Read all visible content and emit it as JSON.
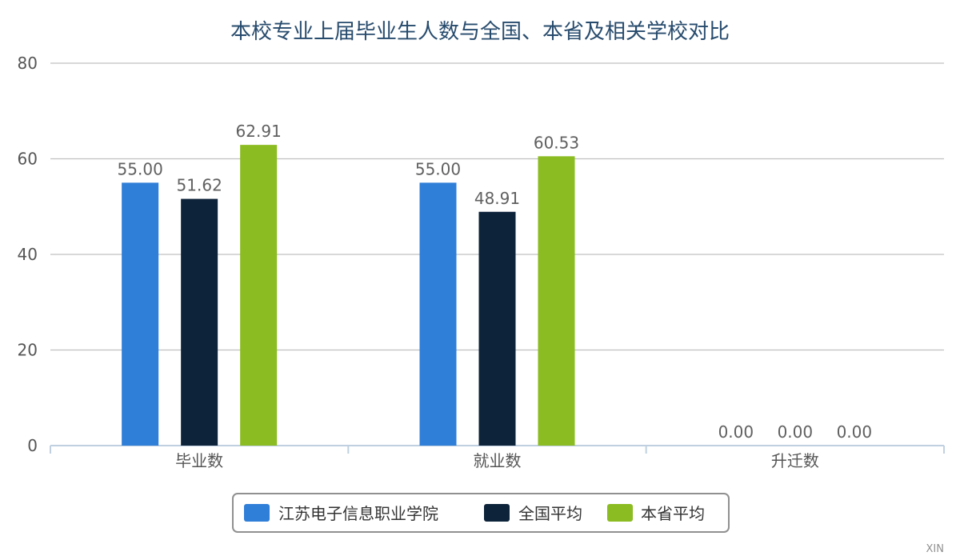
{
  "credit": "XIN",
  "chart_data": {
    "type": "bar",
    "title": "本校专业上届毕业生人数与全国、本省及相关学校对比",
    "categories": [
      "毕业数",
      "就业数",
      "升迁数"
    ],
    "series": [
      {
        "name": "江苏电子信息职业学院",
        "values": [
          55.0,
          55.0,
          0.0
        ],
        "labels": [
          "55.00",
          "55.00",
          "0.00"
        ],
        "color": "#2f7ed8"
      },
      {
        "name": "全国平均",
        "values": [
          51.62,
          48.91,
          0.0
        ],
        "labels": [
          "51.62",
          "48.91",
          "0.00"
        ],
        "color": "#0d233a"
      },
      {
        "name": "本省平均",
        "values": [
          62.91,
          60.53,
          0.0
        ],
        "labels": [
          "62.91",
          "60.53",
          "0.00"
        ],
        "color": "#8bbc21"
      }
    ],
    "yticks": [
      "0",
      "20",
      "40",
      "60",
      "80"
    ],
    "ylim": [
      0,
      80
    ],
    "xlabel": "",
    "ylabel": "",
    "grid": true,
    "legend_position": "bottom-center"
  }
}
